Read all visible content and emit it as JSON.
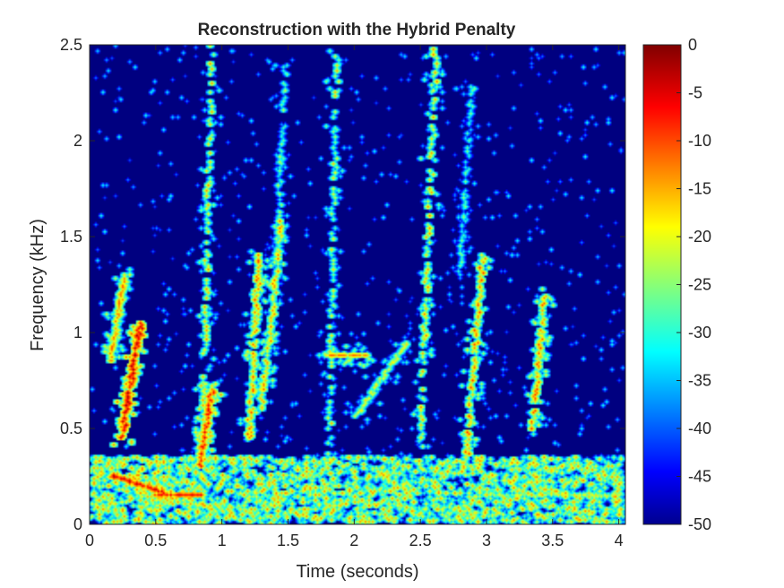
{
  "chart_data": {
    "type": "heatmap",
    "title": "Reconstruction with the Hybrid Penalty",
    "xlabel": "Time (seconds)",
    "ylabel": "Frequency (kHz)",
    "xlim": [
      0,
      4.05
    ],
    "ylim": [
      0,
      2.5
    ],
    "x_ticks": [
      0,
      0.5,
      1,
      1.5,
      2,
      2.5,
      3,
      3.5,
      4
    ],
    "x_tick_labels": [
      "0",
      "0.5",
      "1",
      "1.5",
      "2",
      "2.5",
      "3",
      "3.5",
      "4"
    ],
    "y_ticks": [
      0,
      0.5,
      1,
      1.5,
      2,
      2.5
    ],
    "y_tick_labels": [
      "0",
      "0.5",
      "1",
      "1.5",
      "2",
      "2.5"
    ],
    "colorbar": {
      "colormap": "jet",
      "clim": [
        -50,
        0
      ],
      "ticks": [
        0,
        -5,
        -10,
        -15,
        -20,
        -25,
        -30,
        -35,
        -40,
        -45,
        -50
      ],
      "tick_labels": [
        "0",
        "-5",
        "-10",
        "-15",
        "-20",
        "-25",
        "-30",
        "-35",
        "-40",
        "-45",
        "-50"
      ]
    },
    "colormap_colors": [
      "#00008f",
      "#0000ff",
      "#00ffff",
      "#ffff00",
      "#ff0000",
      "#800000"
    ],
    "background_value": -50,
    "ridges": [
      {
        "t0": 0.15,
        "t1": 0.26,
        "f0": 0.85,
        "f1": 1.3,
        "level": -15
      },
      {
        "t0": 0.24,
        "t1": 0.38,
        "f0": 0.45,
        "f1": 1.05,
        "level": -6
      },
      {
        "t0": 0.18,
        "t1": 0.6,
        "f0": 0.25,
        "f1": 0.15,
        "level": -8
      },
      {
        "t0": 0.5,
        "t1": 0.85,
        "f0": 0.15,
        "f1": 0.15,
        "level": -10
      },
      {
        "t0": 0.85,
        "t1": 0.92,
        "f0": 0.3,
        "f1": 2.5,
        "level": -18
      },
      {
        "t0": 0.83,
        "t1": 0.92,
        "f0": 0.3,
        "f1": 0.7,
        "level": -10
      },
      {
        "t0": 1.2,
        "t1": 1.28,
        "f0": 0.45,
        "f1": 1.4,
        "level": -14
      },
      {
        "t0": 1.3,
        "t1": 1.45,
        "f0": 0.6,
        "f1": 1.6,
        "level": -16
      },
      {
        "t0": 1.4,
        "t1": 1.48,
        "f0": 1.2,
        "f1": 2.4,
        "level": -26
      },
      {
        "t0": 1.8,
        "t1": 1.87,
        "f0": 0.1,
        "f1": 2.5,
        "level": -20
      },
      {
        "t0": 1.8,
        "t1": 2.1,
        "f0": 0.88,
        "f1": 0.88,
        "level": -16
      },
      {
        "t0": 2.0,
        "t1": 2.4,
        "f0": 0.55,
        "f1": 0.95,
        "level": -22
      },
      {
        "t0": 2.5,
        "t1": 2.62,
        "f0": 0.4,
        "f1": 2.5,
        "level": -17
      },
      {
        "t0": 2.85,
        "t1": 2.98,
        "f0": 0.35,
        "f1": 1.4,
        "level": -14
      },
      {
        "t0": 2.8,
        "t1": 2.9,
        "f0": 1.3,
        "f1": 2.3,
        "level": -28
      },
      {
        "t0": 3.35,
        "t1": 3.45,
        "f0": 0.5,
        "f1": 1.2,
        "level": -14
      },
      {
        "t0": 3.0,
        "t1": 4.0,
        "f0": 0.15,
        "f1": 0.15,
        "level": -22
      }
    ],
    "low_frequency_band": {
      "f0": 0.0,
      "f1": 0.35,
      "level": -28
    }
  }
}
